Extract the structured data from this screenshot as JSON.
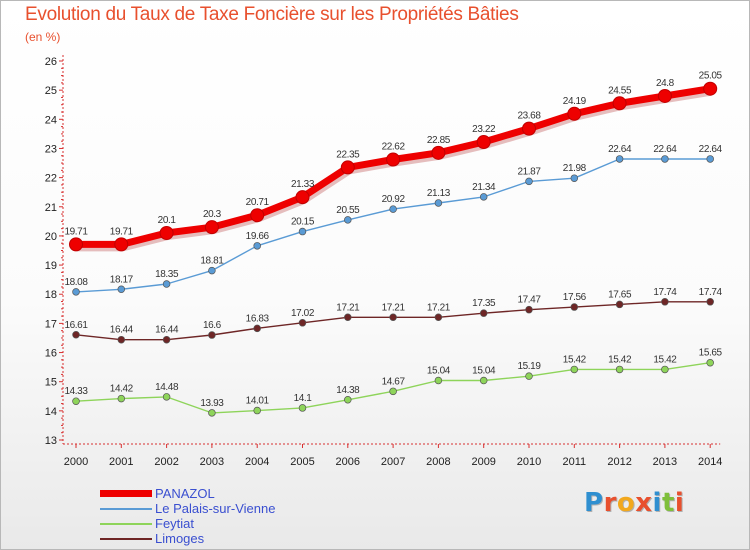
{
  "title": "Evolution du Taux de Taxe Foncière sur les Propriétés Bâties",
  "unit_label": "(en %)",
  "logo": {
    "text": "Proxiti",
    "letters": [
      {
        "ch": "P",
        "color": "#2f8fd0"
      },
      {
        "ch": "r",
        "color": "#e8502e"
      },
      {
        "ch": "o",
        "color": "#f2a81d"
      },
      {
        "ch": "x",
        "color": "#e8502e"
      },
      {
        "ch": "i",
        "color": "#2f8fd0"
      },
      {
        "ch": "t",
        "color": "#7fbf3a"
      },
      {
        "ch": "i",
        "color": "#e8502e"
      }
    ]
  },
  "chart_data": {
    "type": "line",
    "title": "Evolution du Taux de Taxe Foncière sur les Propriétés Bâties",
    "ylabel": "(en %)",
    "xlabel": "",
    "ylim": [
      13,
      26
    ],
    "yticks": [
      13,
      14,
      15,
      16,
      17,
      18,
      19,
      20,
      21,
      22,
      23,
      24,
      25,
      26
    ],
    "x": [
      2000,
      2001,
      2002,
      2003,
      2004,
      2005,
      2006,
      2007,
      2008,
      2009,
      2010,
      2011,
      2012,
      2013,
      2014
    ],
    "grid": false,
    "legend_position": "bottom-left",
    "series": [
      {
        "name": "PANAZOL",
        "color": "#ee0000",
        "values": [
          19.71,
          19.71,
          20.1,
          20.3,
          20.71,
          21.33,
          22.35,
          22.62,
          22.85,
          23.22,
          23.68,
          24.19,
          24.55,
          24.8,
          25.05
        ],
        "labels": [
          "19.71",
          "19.71",
          "20.1",
          "20.3",
          "20.71",
          "21.33",
          "22.35",
          "22.62",
          "22.85",
          "23.22",
          "23.68",
          "24.19",
          "24.55",
          "24.8",
          "25.05"
        ]
      },
      {
        "name": "Le Palais-sur-Vienne",
        "color": "#5a9bd5",
        "values": [
          18.08,
          18.17,
          18.35,
          18.81,
          19.66,
          20.15,
          20.55,
          20.92,
          21.13,
          21.34,
          21.87,
          21.98,
          22.64,
          22.64,
          22.64
        ],
        "labels": [
          "18.08",
          "18.17",
          "18.35",
          "18.81",
          "19.66",
          "20.15",
          "20.55",
          "20.92",
          "21.13",
          "21.34",
          "21.87",
          "21.98",
          "22.64",
          "22.64",
          "22.64"
        ]
      },
      {
        "name": "Feytiat",
        "color": "#8ed45a",
        "values": [
          14.33,
          14.42,
          14.48,
          13.93,
          14.01,
          14.1,
          14.38,
          14.67,
          15.04,
          15.04,
          15.19,
          15.42,
          15.42,
          15.42,
          15.65
        ],
        "labels": [
          "14.33",
          "14.42",
          "14.48",
          "13.93",
          "14.01",
          "14.1",
          "14.38",
          "14.67",
          "15.04",
          "15.04",
          "15.19",
          "15.42",
          "15.42",
          "15.42",
          "15.65"
        ]
      },
      {
        "name": "Limoges",
        "color": "#6e2626",
        "values": [
          16.61,
          16.44,
          16.44,
          16.6,
          16.83,
          17.02,
          17.21,
          17.21,
          17.21,
          17.35,
          17.47,
          17.56,
          17.65,
          17.74,
          17.74
        ],
        "labels": [
          "16.61",
          "16.44",
          "16.44",
          "16.6",
          "16.83",
          "17.02",
          "17.21",
          "17.21",
          "17.21",
          "17.35",
          "17.47",
          "17.56",
          "17.65",
          "17.74",
          "17.74"
        ]
      }
    ]
  }
}
